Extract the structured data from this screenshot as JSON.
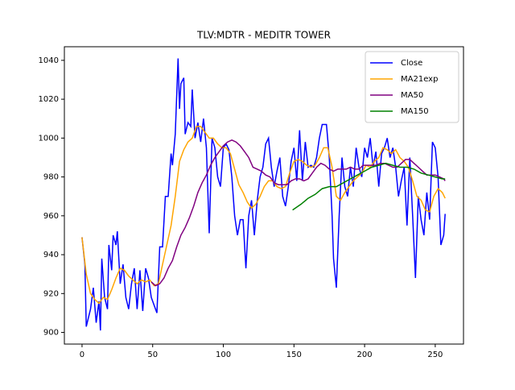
{
  "chart_data": {
    "type": "line",
    "title": "TLV:MDTR - MEDITR TOWER",
    "xlim": [
      -12.5,
      270
    ],
    "ylim": [
      894,
      1047
    ],
    "xticks": [
      0,
      50,
      100,
      150,
      200,
      250
    ],
    "yticks": [
      900,
      920,
      940,
      960,
      980,
      1000,
      1020,
      1040
    ],
    "legend": "upper right",
    "series": [
      {
        "name": "Close",
        "color": "blue",
        "x": [
          0,
          2,
          3,
          6,
          8,
          10,
          12,
          13,
          14,
          16,
          18,
          19,
          21,
          22,
          24,
          25,
          27,
          29,
          31,
          33,
          35,
          37,
          39,
          41,
          43,
          45,
          47,
          49,
          51,
          53,
          55,
          57,
          59,
          61,
          63,
          64,
          66,
          68,
          69,
          70,
          72,
          73,
          75,
          77,
          78,
          80,
          82,
          84,
          86,
          88,
          90,
          92,
          94,
          96,
          98,
          100,
          102,
          104,
          106,
          108,
          110,
          112,
          114,
          116,
          118,
          120,
          122,
          124,
          126,
          128,
          130,
          132,
          134,
          136,
          138,
          140,
          142,
          144,
          146,
          148,
          150,
          152,
          154,
          156,
          158,
          160,
          162,
          164,
          166,
          168,
          170,
          173,
          175,
          177,
          178,
          180,
          182,
          184,
          186,
          188,
          190,
          192,
          194,
          196,
          198,
          200,
          202,
          204,
          206,
          208,
          210,
          212,
          214,
          216,
          218,
          220,
          222,
          224,
          226,
          228,
          230,
          232,
          234,
          236,
          238,
          240,
          242,
          244,
          246,
          248,
          250,
          252,
          254,
          256,
          257
        ],
        "values": [
          949,
          935,
          903,
          912,
          923,
          905,
          916,
          901,
          938,
          918,
          912,
          945,
          932,
          950,
          945,
          952,
          925,
          935,
          918,
          912,
          925,
          933,
          912,
          932,
          911,
          933,
          928,
          918,
          914,
          910,
          944,
          944,
          970,
          970,
          992,
          986,
          1002,
          1041,
          1015,
          1028,
          1031,
          1002,
          1008,
          1006,
          1025,
          1000,
          1008,
          998,
          1010,
          995,
          951,
          1000,
          995,
          980,
          975,
          995,
          997,
          994,
          980,
          960,
          950,
          958,
          958,
          933,
          960,
          968,
          950,
          968,
          980,
          985,
          997,
          1000,
          985,
          975,
          983,
          990,
          970,
          965,
          975,
          988,
          995,
          978,
          1004,
          978,
          998,
          985,
          986,
          985,
          990,
          1000,
          1007,
          1007,
          990,
          960,
          938,
          923,
          960,
          990,
          975,
          970,
          985,
          975,
          995,
          985,
          980,
          995,
          990,
          1000,
          985,
          993,
          975,
          992,
          995,
          1000,
          990,
          995,
          985,
          970,
          978,
          985,
          955,
          990,
          960,
          928,
          970,
          958,
          950,
          972,
          958,
          998,
          995,
          980,
          945,
          950,
          961
        ]
      },
      {
        "name": "MA21exp",
        "color": "orange",
        "x": [
          0,
          3,
          6,
          9,
          12,
          15,
          18,
          21,
          24,
          27,
          30,
          33,
          36,
          39,
          42,
          45,
          48,
          51,
          54,
          57,
          60,
          63,
          66,
          69,
          72,
          75,
          78,
          81,
          84,
          87,
          90,
          93,
          96,
          99,
          102,
          105,
          108,
          111,
          114,
          117,
          120,
          123,
          126,
          129,
          132,
          135,
          138,
          141,
          144,
          147,
          150,
          153,
          156,
          159,
          162,
          165,
          168,
          171,
          174,
          177,
          180,
          183,
          186,
          189,
          192,
          195,
          198,
          201,
          204,
          207,
          210,
          213,
          216,
          219,
          222,
          225,
          228,
          231,
          234,
          237,
          240,
          243,
          246,
          249,
          252,
          255,
          257
        ],
        "values": [
          949,
          930,
          920,
          917,
          915,
          918,
          917,
          922,
          928,
          933,
          932,
          929,
          927,
          925,
          927,
          926,
          927,
          924,
          925,
          935,
          945,
          955,
          970,
          988,
          994,
          998,
          1000,
          1006,
          1006,
          1003,
          1000,
          1000,
          997,
          995,
          995,
          992,
          984,
          976,
          972,
          967,
          964,
          966,
          970,
          975,
          978,
          978,
          975,
          974,
          975,
          982,
          988,
          989,
          988,
          986,
          985,
          986,
          990,
          995,
          995,
          985,
          970,
          968,
          972,
          975,
          978,
          980,
          982,
          986,
          985,
          988,
          990,
          995,
          994,
          992,
          994,
          990,
          988,
          985,
          978,
          970,
          968,
          963,
          962,
          970,
          974,
          972,
          969
        ]
      },
      {
        "name": "MA50",
        "color": "purple",
        "x": [
          49,
          52,
          55,
          58,
          61,
          64,
          67,
          70,
          73,
          76,
          79,
          82,
          85,
          88,
          91,
          94,
          97,
          100,
          103,
          106,
          109,
          112,
          115,
          118,
          121,
          124,
          127,
          130,
          133,
          136,
          139,
          142,
          145,
          148,
          151,
          154,
          157,
          160,
          163,
          166,
          169,
          172,
          175,
          178,
          181,
          184,
          187,
          190,
          193,
          196,
          199,
          202,
          205,
          208,
          211,
          214,
          217,
          220,
          223,
          226,
          229,
          232,
          235,
          238,
          241,
          244,
          247,
          250,
          253,
          256,
          257
        ],
        "values": [
          926,
          924,
          925,
          928,
          933,
          937,
          944,
          950,
          954,
          959,
          965,
          972,
          977,
          981,
          986,
          990,
          993,
          996,
          998,
          999,
          998,
          996,
          993,
          990,
          985,
          984,
          983,
          981,
          980,
          977,
          976,
          976,
          976,
          978,
          979,
          979,
          978,
          979,
          982,
          985,
          987,
          986,
          984,
          983,
          984,
          984,
          984,
          985,
          984,
          984,
          986,
          986,
          986,
          986,
          987,
          987,
          986,
          985,
          985,
          987,
          989,
          989,
          987,
          985,
          983,
          981,
          981,
          981,
          980,
          979,
          978
        ]
      },
      {
        "name": "MA150",
        "color": "green",
        "x": [
          149,
          155,
          160,
          165,
          170,
          175,
          180,
          185,
          190,
          195,
          200,
          205,
          210,
          215,
          220,
          225,
          230,
          235,
          240,
          245,
          250,
          255,
          257
        ],
        "values": [
          963,
          966,
          969,
          971,
          974,
          975,
          975,
          977,
          979,
          981,
          983,
          985,
          986,
          987,
          986,
          985,
          985,
          984,
          982,
          981,
          980,
          979,
          979
        ]
      }
    ]
  }
}
